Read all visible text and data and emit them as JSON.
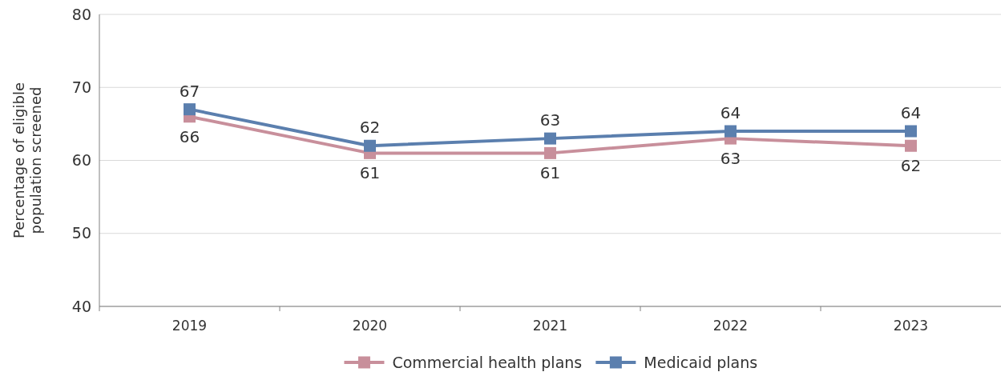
{
  "chart_data": {
    "type": "line",
    "ylabel": "Percentage of eligible population screened",
    "categories": [
      "2019",
      "2020",
      "2021",
      "2022",
      "2023"
    ],
    "series": [
      {
        "name": "Commercial health plans",
        "color": "#c88f9b",
        "values": [
          66,
          61,
          61,
          63,
          62
        ]
      },
      {
        "name": "Medicaid plans",
        "color": "#5b7fae",
        "values": [
          67,
          62,
          63,
          64,
          64
        ]
      }
    ],
    "ylim": [
      40,
      80
    ],
    "yticks": [
      40,
      50,
      60,
      70,
      80
    ],
    "grid": "y",
    "legend": "bottom",
    "marker": "square",
    "line_style": "solid",
    "data_labels": true
  }
}
